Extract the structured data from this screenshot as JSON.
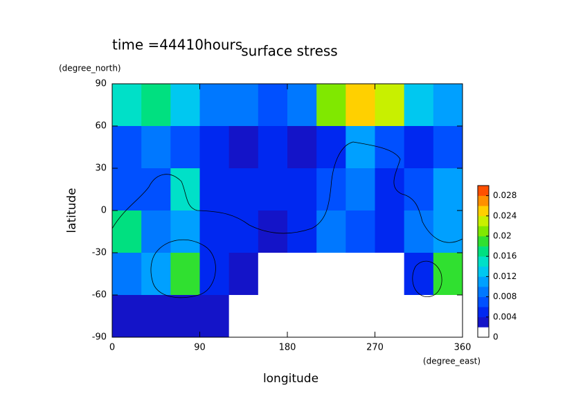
{
  "chart_data": {
    "type": "heatmap",
    "title": "surface stress",
    "subtitle": "time =44410hours",
    "x_label": "longitude",
    "x_unit": "(degree_east)",
    "y_label": "latitude",
    "y_unit": "(degree_north)",
    "x": [
      15,
      45,
      75,
      105,
      135,
      165,
      195,
      225,
      255,
      285,
      315,
      345
    ],
    "y": [
      75,
      45,
      15,
      -15,
      -45,
      -75
    ],
    "values": [
      [
        0.014,
        0.016,
        0.012,
        0.008,
        0.008,
        0.006,
        0.008,
        0.02,
        0.024,
        0.022,
        0.012,
        0.01
      ],
      [
        0.006,
        0.008,
        0.006,
        0.004,
        0.002,
        0.004,
        0.002,
        0.004,
        0.01,
        0.006,
        0.004,
        0.006
      ],
      [
        0.006,
        0.006,
        0.014,
        0.004,
        0.004,
        0.004,
        0.004,
        0.006,
        0.008,
        0.004,
        0.006,
        0.01
      ],
      [
        0.016,
        0.008,
        0.01,
        0.004,
        0.004,
        0.002,
        0.004,
        0.008,
        0.006,
        0.004,
        0.008,
        0.01
      ],
      [
        0.008,
        0.01,
        0.018,
        0.004,
        0.002,
        0,
        0,
        0,
        0,
        0,
        0.004,
        0.018
      ],
      [
        0.002,
        0.002,
        0.002,
        0.002,
        0,
        0,
        0,
        0,
        0,
        0,
        0,
        0
      ]
    ],
    "xlim": [
      0,
      360
    ],
    "xticks": [
      0,
      90,
      180,
      270,
      360
    ],
    "ylim": [
      -90,
      90
    ],
    "yticks": [
      -90,
      -60,
      -30,
      0,
      30,
      60,
      90
    ],
    "clim": [
      0,
      0.03
    ],
    "cticks": [
      0,
      0.004,
      0.008,
      0.012,
      0.016,
      0.02,
      0.024,
      0.028
    ],
    "colors": [
      "#ffffff",
      "#1414c8",
      "#0028f0",
      "#0050ff",
      "#0078ff",
      "#00a0ff",
      "#00c8f0",
      "#00e0c8",
      "#00e080",
      "#30e030",
      "#80e800",
      "#c8f000",
      "#ffd000",
      "#ff9000",
      "#ff5000"
    ]
  }
}
